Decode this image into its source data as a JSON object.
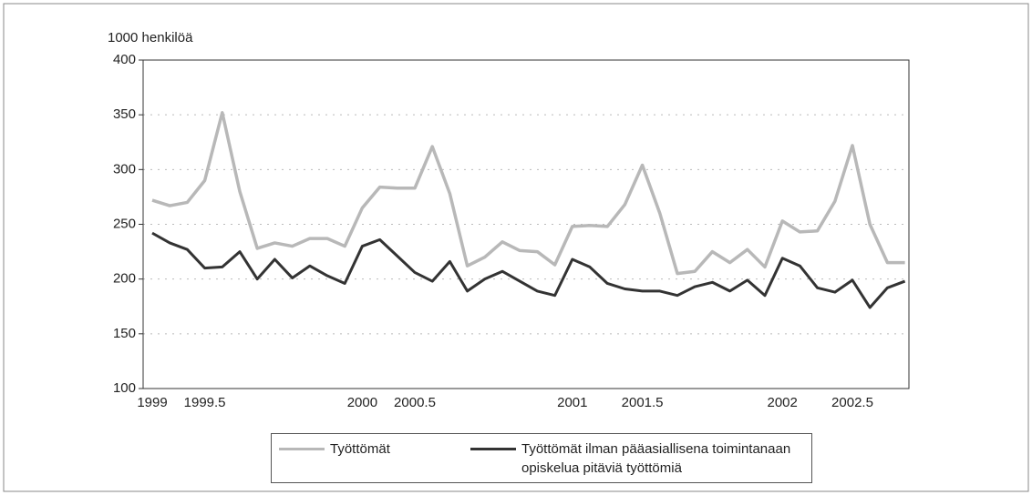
{
  "chart_data": {
    "type": "line",
    "y_axis_label": "1000 henkilöä",
    "categories": [
      "1999",
      null,
      null,
      "1999.5",
      null,
      null,
      null,
      null,
      null,
      null,
      null,
      null,
      "2000",
      null,
      null,
      "2000.5",
      null,
      null,
      null,
      null,
      null,
      null,
      null,
      null,
      "2001",
      null,
      null,
      null,
      "2001.5",
      null,
      null,
      null,
      null,
      null,
      null,
      null,
      "2002",
      null,
      null,
      null,
      "2002.5",
      null,
      null,
      null
    ],
    "series": [
      {
        "name": "Työttömät",
        "color": "#b8b8b8",
        "values": [
          272,
          267,
          270,
          290,
          352,
          280,
          228,
          233,
          230,
          237,
          237,
          230,
          265,
          284,
          283,
          283,
          321,
          278,
          212,
          220,
          234,
          226,
          225,
          213,
          248,
          249,
          248,
          268,
          304,
          260,
          205,
          207,
          225,
          215,
          227,
          211,
          253,
          243,
          244,
          271,
          322,
          250,
          215,
          215
        ]
      },
      {
        "name": "Työttömät ilman pääasiallisena toimintanaan opiskelua pitäviä työttömiä",
        "color": "#333333",
        "values": [
          242,
          233,
          227,
          210,
          211,
          225,
          200,
          218,
          201,
          212,
          203,
          196,
          230,
          236,
          221,
          206,
          198,
          216,
          189,
          200,
          207,
          198,
          189,
          185,
          218,
          211,
          196,
          191,
          189,
          189,
          185,
          193,
          197,
          189,
          199,
          185,
          219,
          212,
          192,
          188,
          199,
          174,
          192,
          198
        ]
      }
    ],
    "ylim": [
      100,
      400
    ],
    "yticks": [
      100,
      150,
      200,
      250,
      300,
      350,
      400
    ],
    "grid": true
  }
}
